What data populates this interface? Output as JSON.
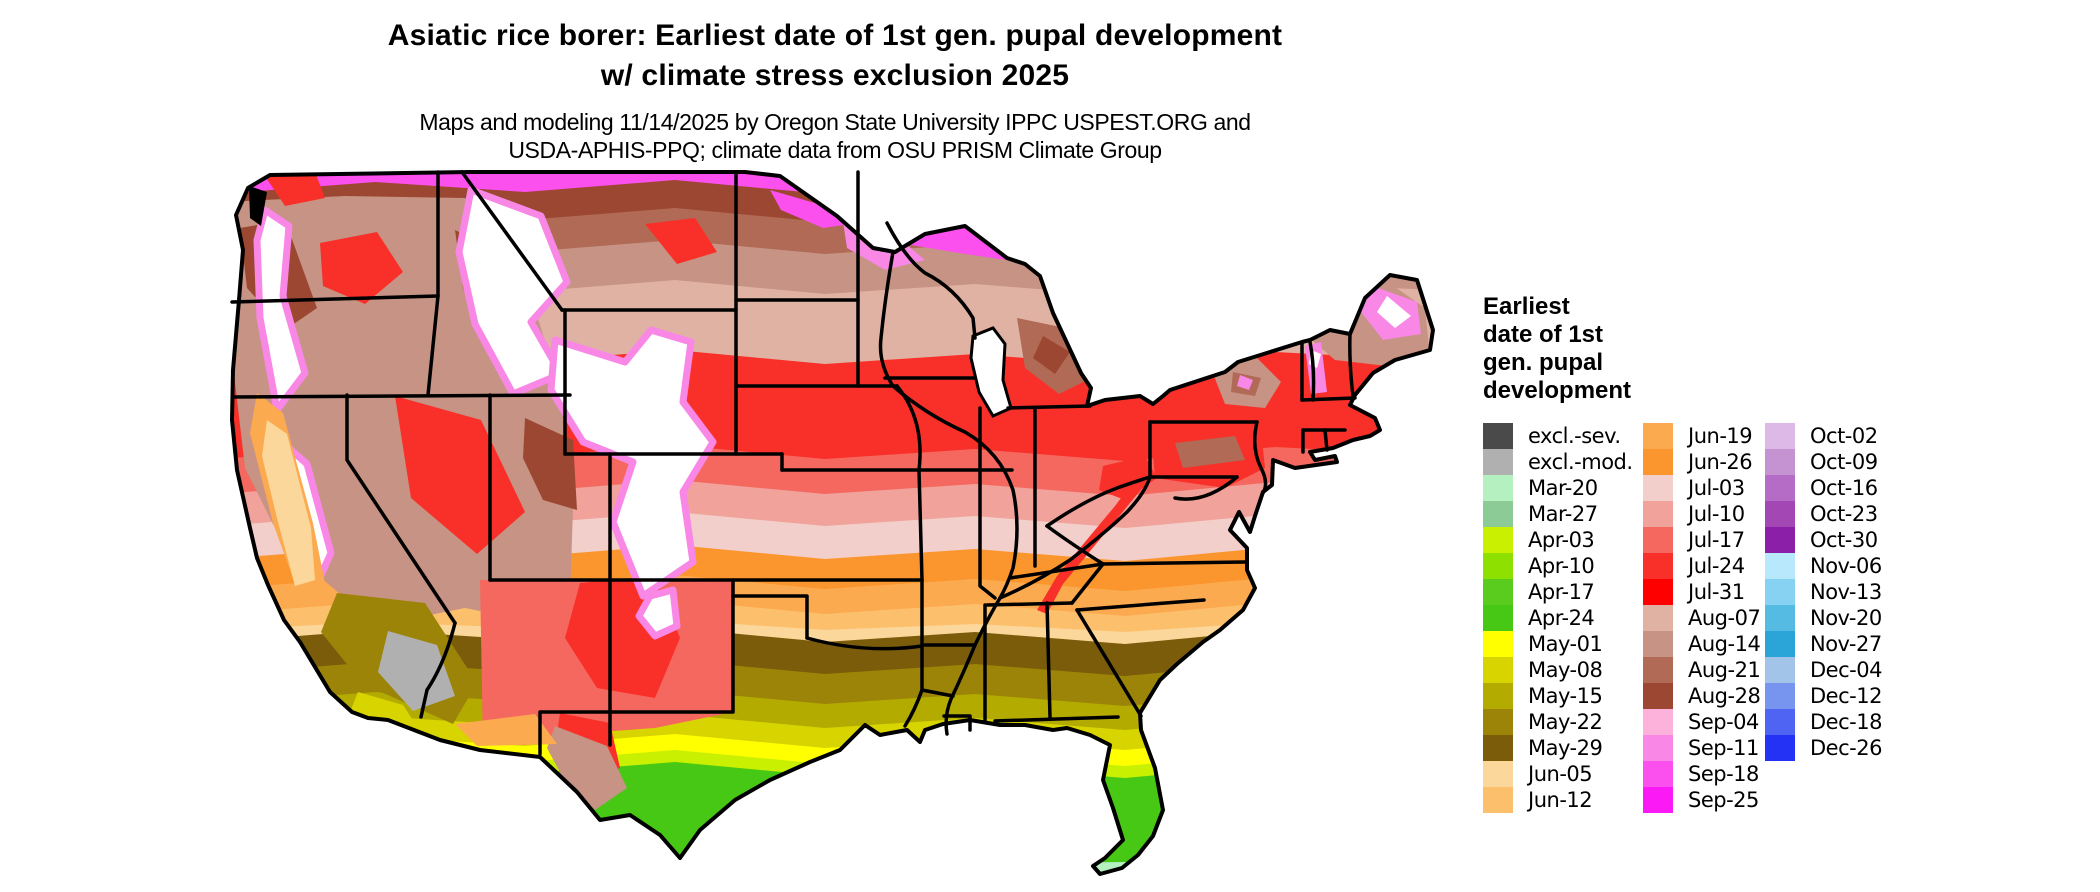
{
  "header": {
    "title_line1": "Asiatic rice borer: Earliest date of 1st gen. pupal development",
    "title_line2": "w/ climate stress exclusion 2025",
    "subtitle_line1": "Maps and modeling 11/14/2025 by Oregon State University IPPC USPEST.ORG and",
    "subtitle_line2": "USDA-APHIS-PPQ; climate data from OSU PRISM Climate Group"
  },
  "legend": {
    "title_lines": [
      "Earliest",
      "date of 1st",
      "gen. pupal",
      "development"
    ],
    "columns": [
      {
        "items": [
          {
            "label": "excl.-sev.",
            "color": "#4a4a4a"
          },
          {
            "label": "excl.-mod.",
            "color": "#b0b0b0"
          },
          {
            "label": "Mar-20",
            "color": "#b4f0c0"
          },
          {
            "label": "Mar-27",
            "color": "#8cca96"
          },
          {
            "label": "Apr-03",
            "color": "#c8f000"
          },
          {
            "label": "Apr-10",
            "color": "#8ee000"
          },
          {
            "label": "Apr-17",
            "color": "#59cc1e"
          },
          {
            "label": "Apr-24",
            "color": "#46c814"
          },
          {
            "label": "May-01",
            "color": "#ffff00"
          },
          {
            "label": "May-08",
            "color": "#d8d400"
          },
          {
            "label": "May-15",
            "color": "#b3ab00"
          },
          {
            "label": "May-22",
            "color": "#9c8408"
          },
          {
            "label": "May-29",
            "color": "#7a5c0a"
          },
          {
            "label": "Jun-05",
            "color": "#fcd79b"
          },
          {
            "label": "Jun-12",
            "color": "#fcc06d"
          }
        ]
      },
      {
        "items": [
          {
            "label": "Jun-19",
            "color": "#fcaa50"
          },
          {
            "label": "Jun-26",
            "color": "#fa962d"
          },
          {
            "label": "Jul-03",
            "color": "#f2cfca"
          },
          {
            "label": "Jul-10",
            "color": "#f0a29b"
          },
          {
            "label": "Jul-17",
            "color": "#f4685f"
          },
          {
            "label": "Jul-24",
            "color": "#f93029"
          },
          {
            "label": "Jul-31",
            "color": "#fe0000"
          },
          {
            "label": "Aug-07",
            "color": "#e0b2a4"
          },
          {
            "label": "Aug-14",
            "color": "#c69384"
          },
          {
            "label": "Aug-21",
            "color": "#b06a55"
          },
          {
            "label": "Aug-28",
            "color": "#9c4732"
          },
          {
            "label": "Sep-04",
            "color": "#fcb2da"
          },
          {
            "label": "Sep-11",
            "color": "#f987e5"
          },
          {
            "label": "Sep-18",
            "color": "#fb50ee"
          },
          {
            "label": "Sep-25",
            "color": "#fb1af5"
          }
        ]
      },
      {
        "items": [
          {
            "label": "Oct-02",
            "color": "#dcb9e6"
          },
          {
            "label": "Oct-09",
            "color": "#c693d2"
          },
          {
            "label": "Oct-16",
            "color": "#b56cc6"
          },
          {
            "label": "Oct-23",
            "color": "#a347b4"
          },
          {
            "label": "Oct-30",
            "color": "#8c1fa8"
          },
          {
            "label": "Nov-06",
            "color": "#b8e8fc"
          },
          {
            "label": "Nov-13",
            "color": "#87d2f2"
          },
          {
            "label": "Nov-20",
            "color": "#55bbe2"
          },
          {
            "label": "Nov-27",
            "color": "#2ba4d8"
          },
          {
            "label": "Dec-04",
            "color": "#a2c4e8"
          },
          {
            "label": "Dec-12",
            "color": "#7795ee"
          },
          {
            "label": "Dec-18",
            "color": "#4f64f2"
          },
          {
            "label": "Dec-26",
            "color": "#2432f6"
          }
        ]
      }
    ]
  }
}
